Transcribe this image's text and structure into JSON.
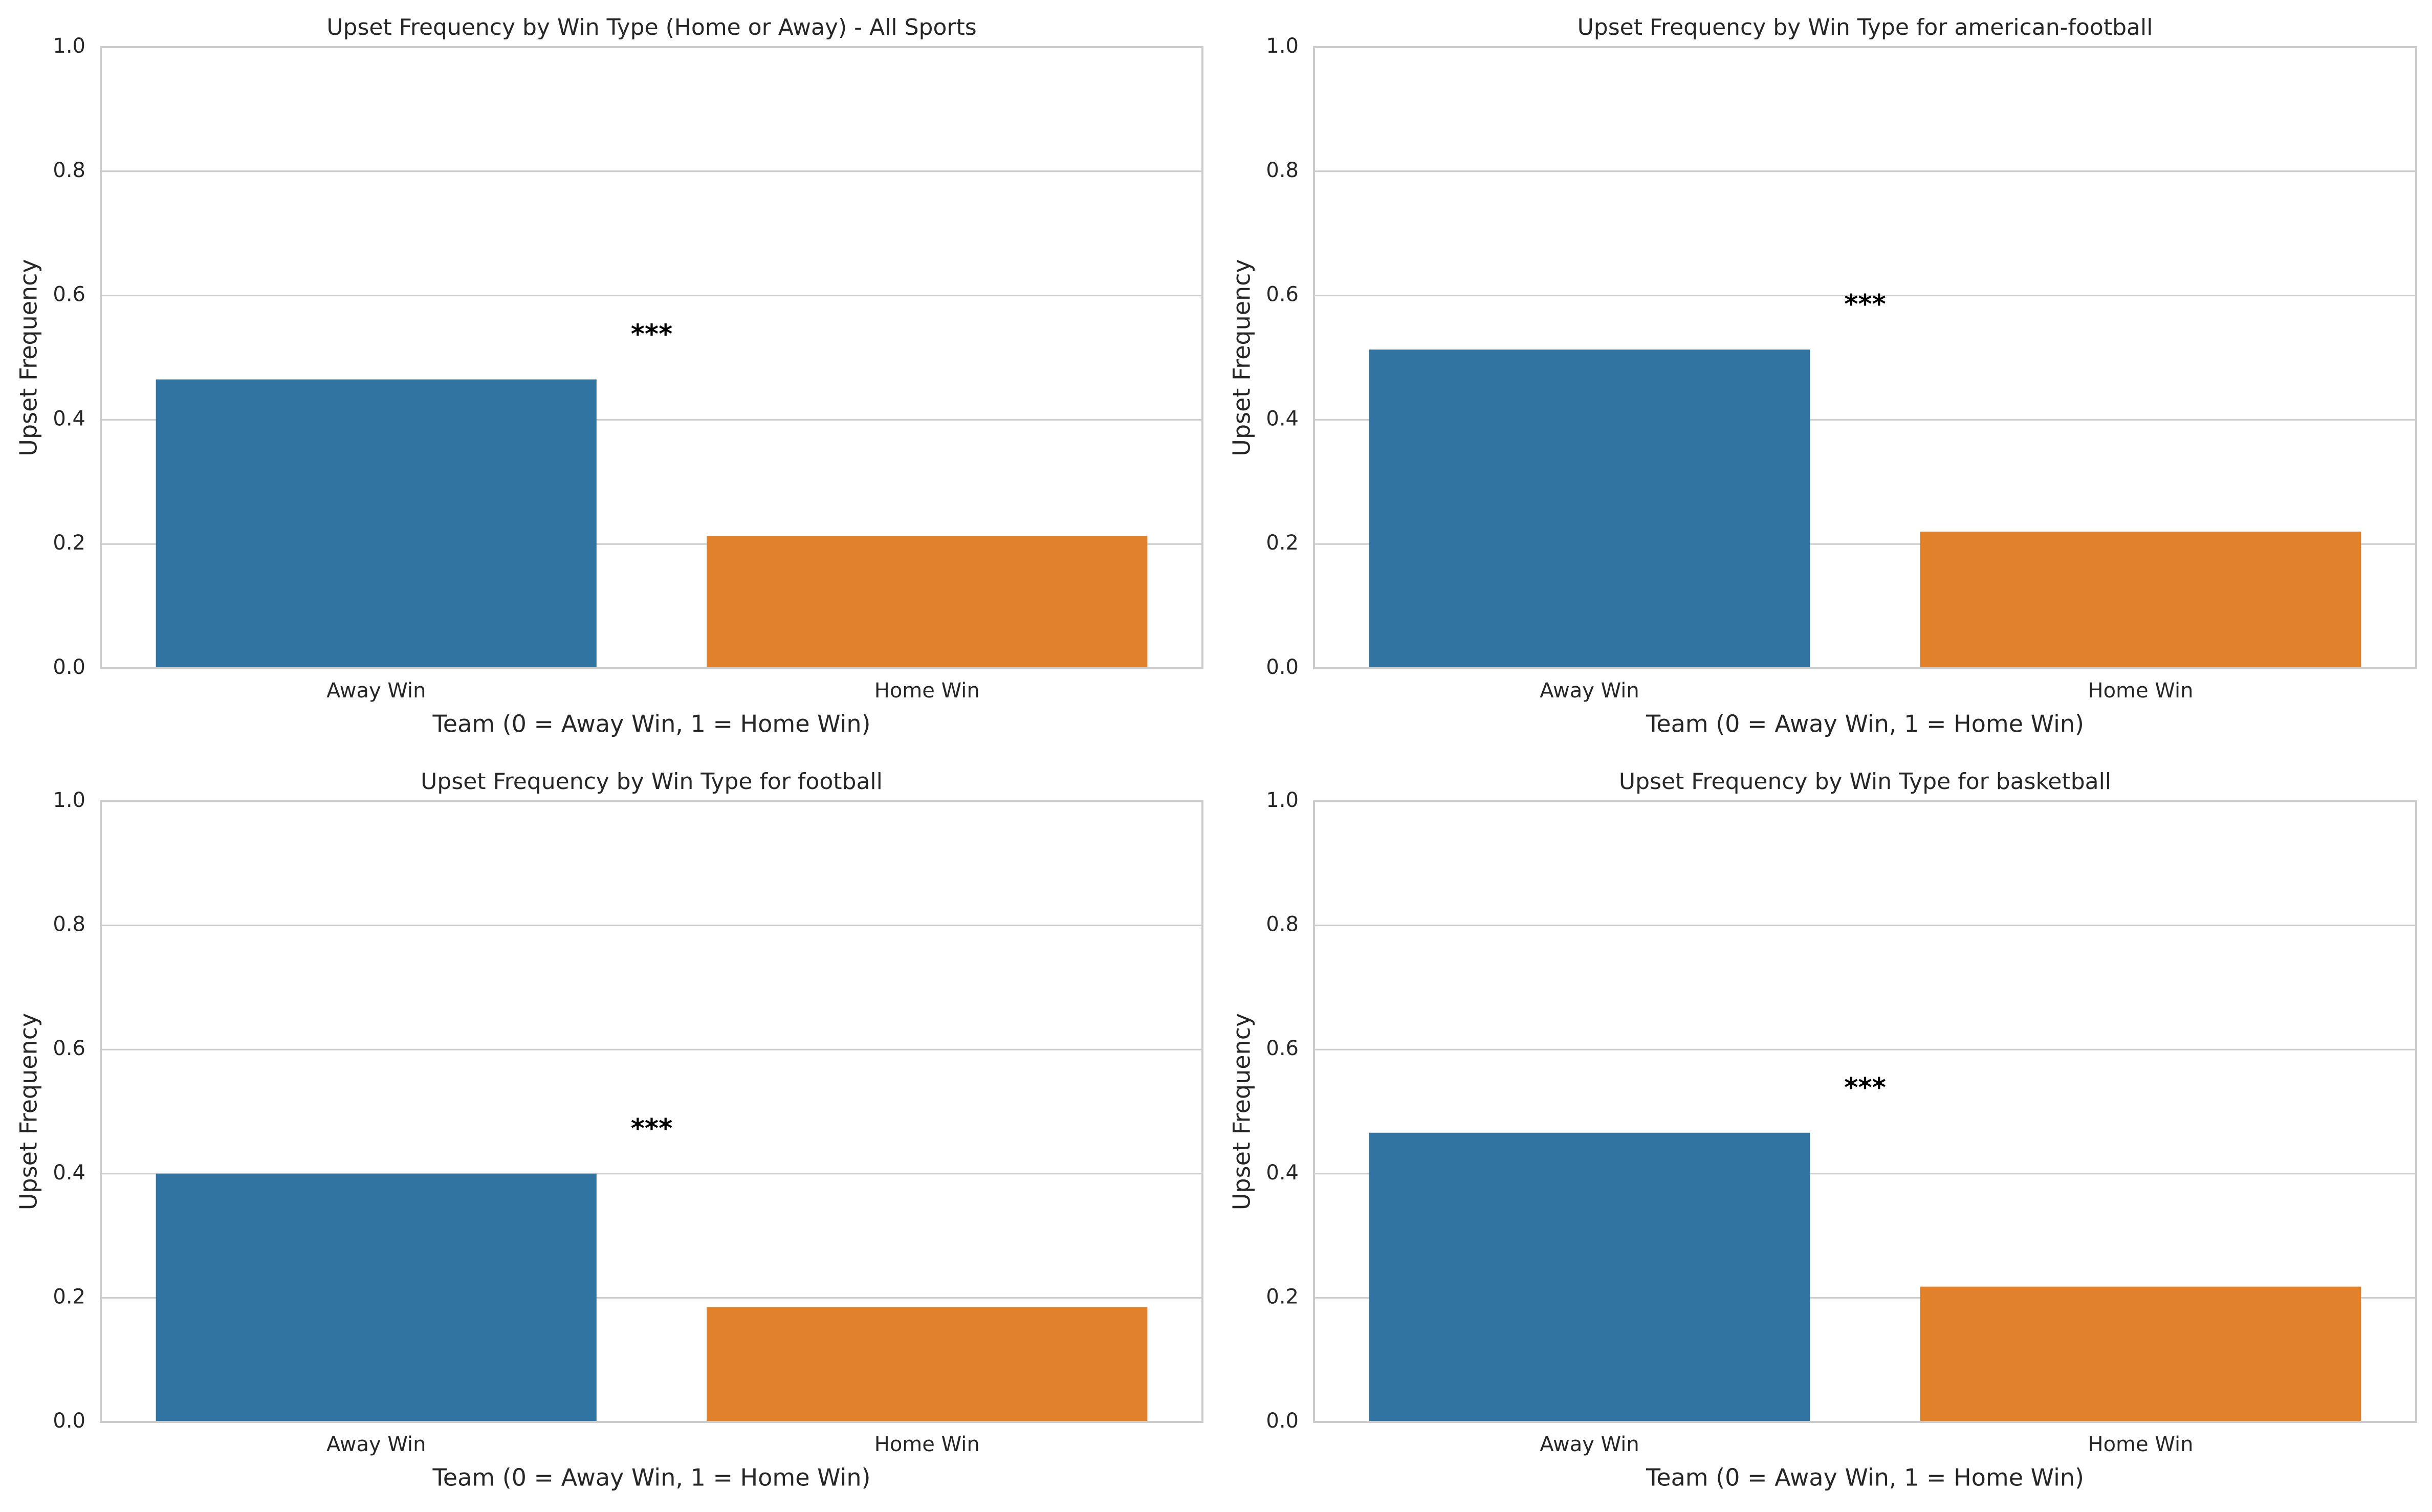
{
  "chart_data": [
    {
      "type": "bar",
      "title": "Upset Frequency by Win Type (Home or Away) - All Sports",
      "xlabel": "Team (0 = Away Win, 1 = Home Win)",
      "ylabel": "Upset Frequency",
      "categories": [
        "Away Win",
        "Home Win"
      ],
      "values": [
        0.465,
        0.213
      ],
      "ylim": [
        0,
        1.0
      ],
      "yticks": [
        0.0,
        0.2,
        0.4,
        0.6,
        0.8,
        1.0
      ],
      "ytick_labels": [
        "0.0",
        "0.2",
        "0.4",
        "0.6",
        "0.8",
        "1.0"
      ],
      "grid": true,
      "significance": {
        "label": "***",
        "y": 0.535
      },
      "colors": [
        "#3274a1",
        "#e1812c"
      ]
    },
    {
      "type": "bar",
      "title": "Upset Frequency by Win Type for american-football",
      "xlabel": "Team (0 = Away Win, 1 = Home Win)",
      "ylabel": "Upset Frequency",
      "categories": [
        "Away Win",
        "Home Win"
      ],
      "values": [
        0.513,
        0.22
      ],
      "ylim": [
        0,
        1.0
      ],
      "yticks": [
        0.0,
        0.2,
        0.4,
        0.6,
        0.8,
        1.0
      ],
      "ytick_labels": [
        "0.0",
        "0.2",
        "0.4",
        "0.6",
        "0.8",
        "1.0"
      ],
      "grid": true,
      "significance": {
        "label": "***",
        "y": 0.583
      },
      "colors": [
        "#3274a1",
        "#e1812c"
      ]
    },
    {
      "type": "bar",
      "title": "Upset Frequency by Win Type for football",
      "xlabel": "Team (0 = Away Win, 1 = Home Win)",
      "ylabel": "Upset Frequency",
      "categories": [
        "Away Win",
        "Home Win"
      ],
      "values": [
        0.4,
        0.185
      ],
      "ylim": [
        0,
        1.0
      ],
      "yticks": [
        0.0,
        0.2,
        0.4,
        0.6,
        0.8,
        1.0
      ],
      "ytick_labels": [
        "0.0",
        "0.2",
        "0.4",
        "0.6",
        "0.8",
        "1.0"
      ],
      "grid": true,
      "significance": {
        "label": "***",
        "y": 0.47
      },
      "colors": [
        "#3274a1",
        "#e1812c"
      ]
    },
    {
      "type": "bar",
      "title": "Upset Frequency by Win Type for basketball",
      "xlabel": "Team (0 = Away Win, 1 = Home Win)",
      "ylabel": "Upset Frequency",
      "categories": [
        "Away Win",
        "Home Win"
      ],
      "values": [
        0.466,
        0.218
      ],
      "ylim": [
        0,
        1.0
      ],
      "yticks": [
        0.0,
        0.2,
        0.4,
        0.6,
        0.8,
        1.0
      ],
      "ytick_labels": [
        "0.0",
        "0.2",
        "0.4",
        "0.6",
        "0.8",
        "1.0"
      ],
      "grid": true,
      "significance": {
        "label": "***",
        "y": 0.536
      },
      "colors": [
        "#3274a1",
        "#e1812c"
      ]
    }
  ]
}
